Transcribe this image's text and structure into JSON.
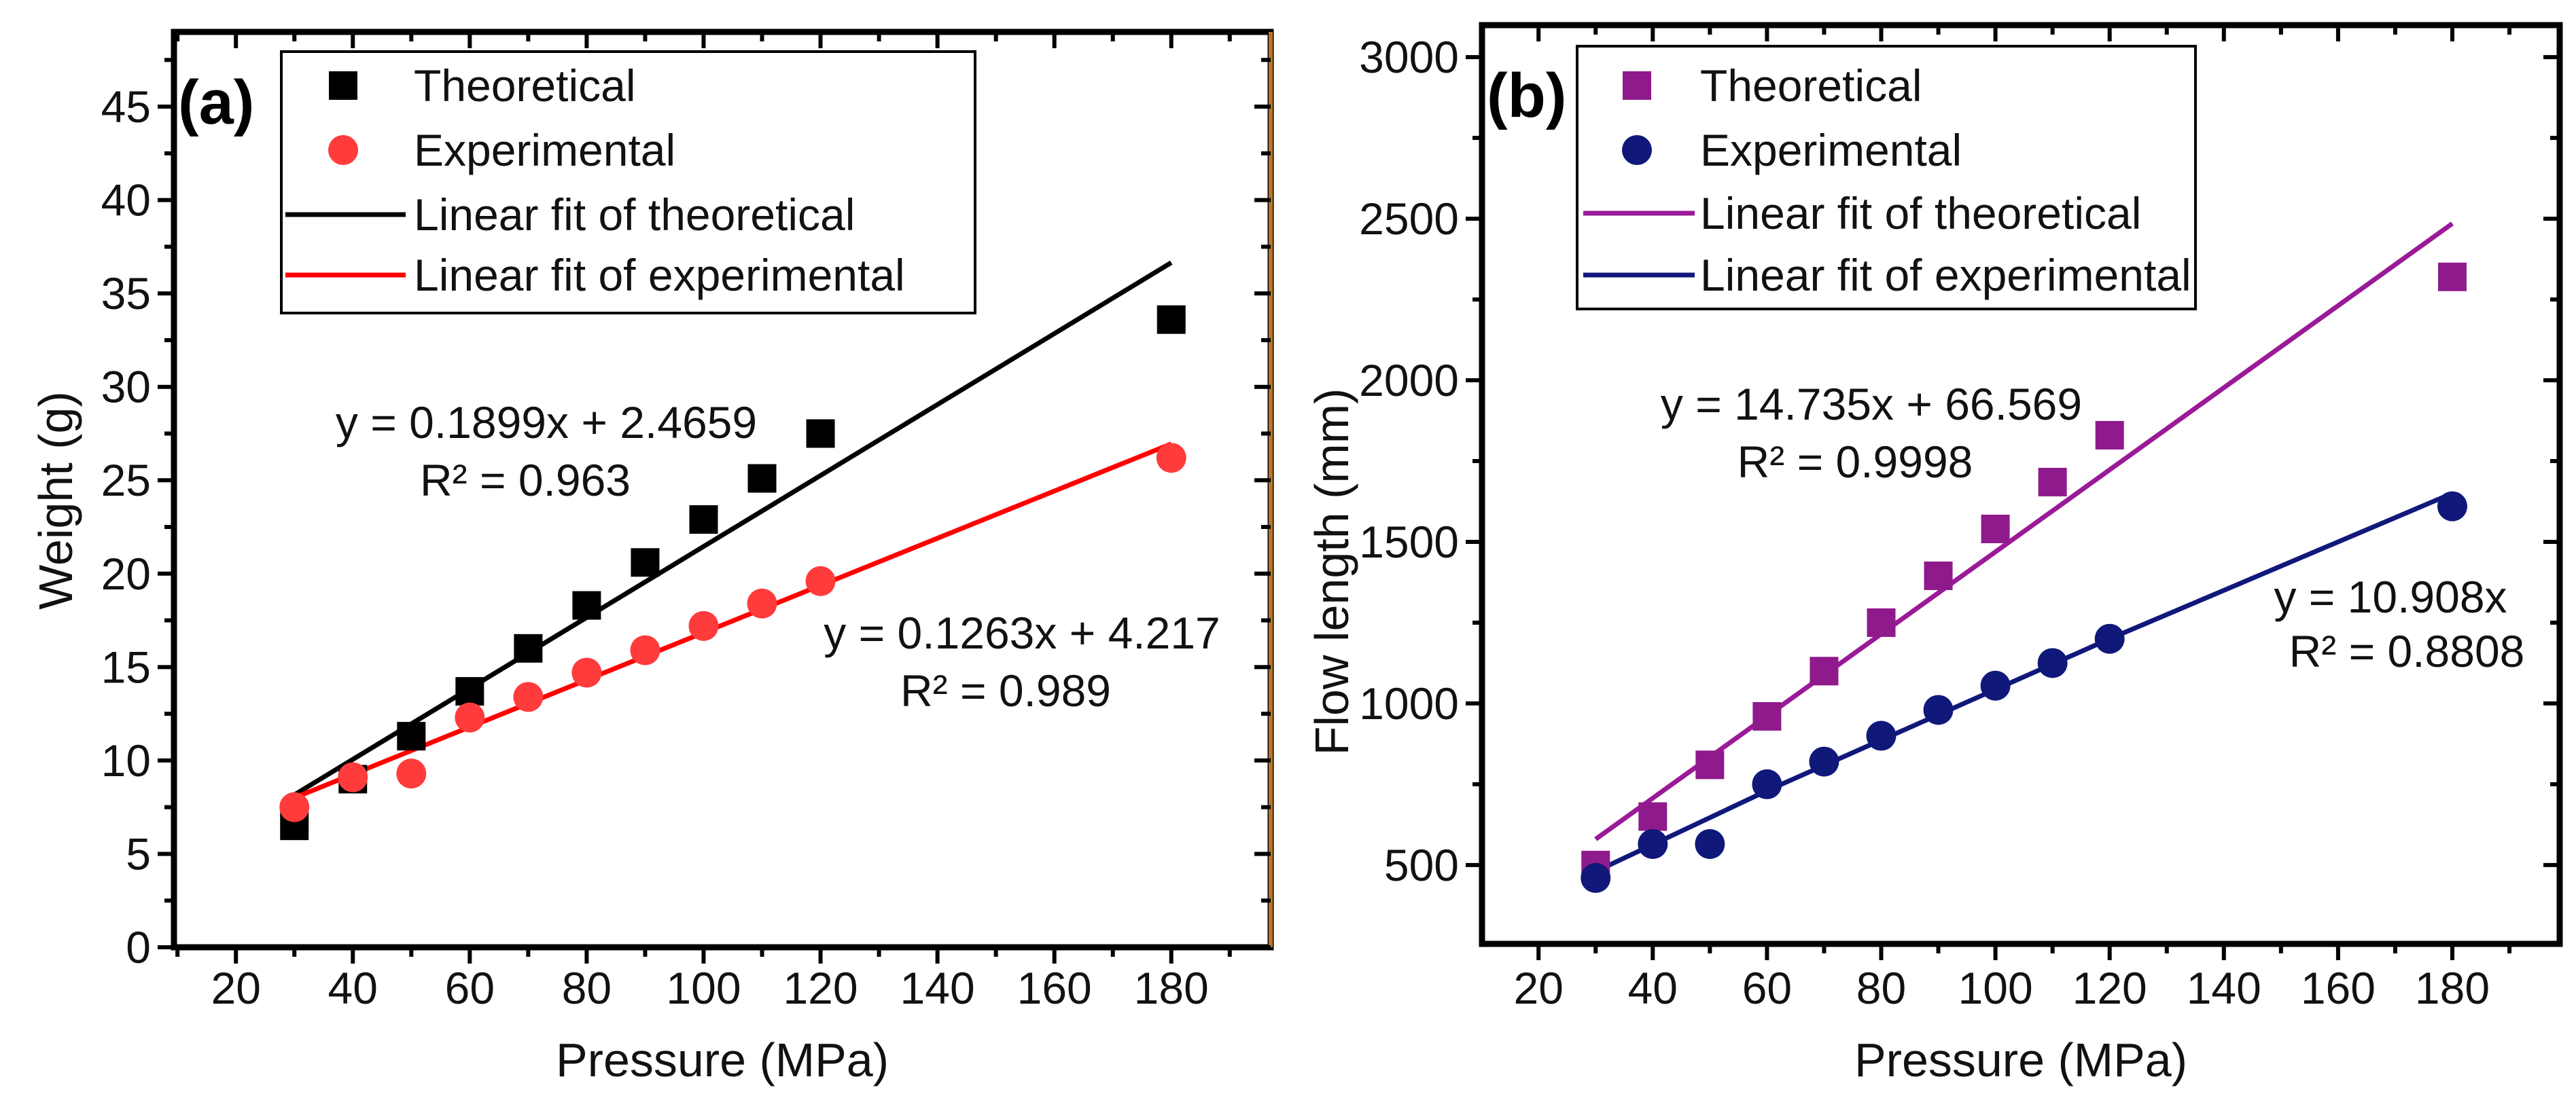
{
  "chart_data": [
    {
      "type": "scatter",
      "panel_label": "(a)",
      "xlabel": "Pressure (MPa)",
      "ylabel": "Weight (g)",
      "xlim": [
        9.4,
        197
      ],
      "ylim": [
        0,
        49
      ],
      "xticks": [
        20,
        40,
        60,
        80,
        100,
        120,
        140,
        160,
        180
      ],
      "yticks": [
        0,
        5,
        10,
        15,
        20,
        25,
        30,
        35,
        40,
        45
      ],
      "legend_position": "top-left",
      "series": [
        {
          "name": "Theoretical",
          "kind": "points",
          "marker": "square",
          "color": "#000000",
          "x": [
            30,
            40,
            50,
            60,
            70,
            80,
            90,
            100,
            110,
            120,
            180
          ],
          "y": [
            6.5,
            9.0,
            11.3,
            13.7,
            16.0,
            18.3,
            20.6,
            22.9,
            25.1,
            27.5,
            33.6
          ]
        },
        {
          "name": "Experimental",
          "kind": "points",
          "marker": "circle",
          "color": "#ff3b3b",
          "x": [
            30,
            40,
            50,
            60,
            70,
            80,
            90,
            100,
            110,
            120,
            180
          ],
          "y": [
            7.5,
            9.1,
            9.3,
            12.3,
            13.4,
            14.7,
            15.9,
            17.2,
            18.4,
            19.6,
            26.2
          ]
        },
        {
          "name": "Linear fit of theoretical",
          "kind": "line",
          "color": "#000000",
          "x": [
            30,
            180
          ],
          "y": [
            8.16,
            36.65
          ]
        },
        {
          "name": "Linear fit of experimental",
          "kind": "line",
          "color": "#ff0000",
          "x": [
            30,
            180
          ],
          "y": [
            8.0,
            26.95
          ]
        }
      ],
      "annotations": [
        {
          "text": "y = 0.1899x + 2.4659"
        },
        {
          "text": "R² = 0.963"
        },
        {
          "text": "y = 0.1263x + 4.217"
        },
        {
          "text": "R² = 0.989"
        }
      ]
    },
    {
      "type": "scatter",
      "panel_label": "(b)",
      "xlabel": "Pressure (MPa)",
      "ylabel": "Flow length (mm)",
      "xlim": [
        10.1,
        198.8
      ],
      "ylim": [
        256,
        3099
      ],
      "xticks": [
        20,
        40,
        60,
        80,
        100,
        120,
        140,
        160,
        180
      ],
      "yticks": [
        500,
        1000,
        1500,
        2000,
        2500,
        3000
      ],
      "legend_position": "top-left",
      "series": [
        {
          "name": "Theoretical",
          "kind": "points",
          "marker": "square",
          "color": "#8e1a8c",
          "x": [
            30,
            40,
            50,
            60,
            70,
            80,
            90,
            100,
            110,
            120,
            180
          ],
          "y": [
            500,
            650,
            810,
            960,
            1100,
            1250,
            1395,
            1540,
            1685,
            1830,
            2320
          ]
        },
        {
          "name": "Experimental",
          "kind": "points",
          "marker": "circle",
          "color": "#10187a",
          "x": [
            30,
            40,
            50,
            60,
            70,
            80,
            90,
            100,
            110,
            120,
            180
          ],
          "y": [
            460,
            565,
            565,
            750,
            820,
            900,
            980,
            1055,
            1125,
            1200,
            1610
          ]
        },
        {
          "name": "Linear fit of theoretical",
          "kind": "line",
          "color": "#9a1a98",
          "x": [
            30,
            180
          ],
          "y": [
            580,
            2485
          ]
        },
        {
          "name": "Linear fit of experimental",
          "kind": "line",
          "color": "#10187a",
          "x": [
            30,
            60,
            120,
            180
          ],
          "y": [
            480,
            730,
            1200,
            1650
          ]
        }
      ],
      "annotations": [
        {
          "text": "y = 14.735x + 66.569"
        },
        {
          "text": "R² = 0.9998"
        },
        {
          "text": "y = 10.908x"
        },
        {
          "text": "R² = 0.8808"
        }
      ]
    }
  ]
}
